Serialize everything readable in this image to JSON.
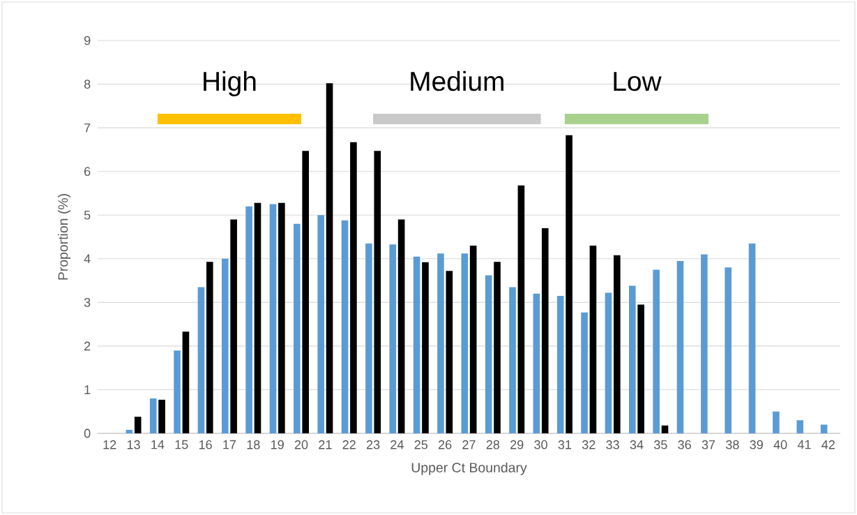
{
  "chart_data": {
    "type": "bar",
    "xlabel": "Upper Ct Boundary",
    "ylabel": "Proportion (%)",
    "categories": [
      "12",
      "13",
      "14",
      "15",
      "16",
      "17",
      "18",
      "19",
      "20",
      "21",
      "22",
      "23",
      "24",
      "25",
      "26",
      "27",
      "28",
      "29",
      "30",
      "31",
      "32",
      "33",
      "34",
      "35",
      "36",
      "37",
      "38",
      "39",
      "40",
      "41",
      "42"
    ],
    "series": [
      {
        "color": "#5b9bd5",
        "values": [
          0,
          0.08,
          0.8,
          1.9,
          3.35,
          4.0,
          5.2,
          5.25,
          4.8,
          5.0,
          4.88,
          4.35,
          4.33,
          4.05,
          4.12,
          4.12,
          3.62,
          3.35,
          3.2,
          3.15,
          2.77,
          3.22,
          3.38,
          3.75,
          3.95,
          4.1,
          3.8,
          4.35,
          0.5,
          0.3,
          0.2
        ]
      },
      {
        "color": "#000000",
        "values": [
          0,
          0.38,
          0.77,
          2.33,
          3.93,
          4.9,
          5.28,
          5.28,
          6.47,
          8.02,
          6.67,
          6.47,
          4.9,
          3.92,
          3.72,
          4.3,
          3.93,
          5.68,
          4.7,
          6.83,
          4.3,
          4.08,
          2.95,
          0.18,
          0,
          0,
          0,
          0,
          0,
          0,
          0
        ]
      },
      {
        "type": "line",
        "color": "#ffc000",
        "x": [
          "14",
          "20"
        ],
        "values": [
          7.2,
          7.2
        ]
      },
      {
        "type": "line",
        "color": "#c9c9c9",
        "x": [
          "23",
          "30"
        ],
        "values": [
          7.2,
          7.2
        ]
      },
      {
        "type": "line",
        "color": "#a9d18e",
        "x": [
          "31",
          "37"
        ],
        "values": [
          7.2,
          7.2
        ]
      }
    ],
    "ylim": [
      0,
      9
    ],
    "yticks": [
      0,
      1,
      2,
      3,
      4,
      5,
      6,
      7,
      8,
      9
    ],
    "grid": "y",
    "annotations": [
      "High",
      "Medium",
      "Low"
    ]
  }
}
